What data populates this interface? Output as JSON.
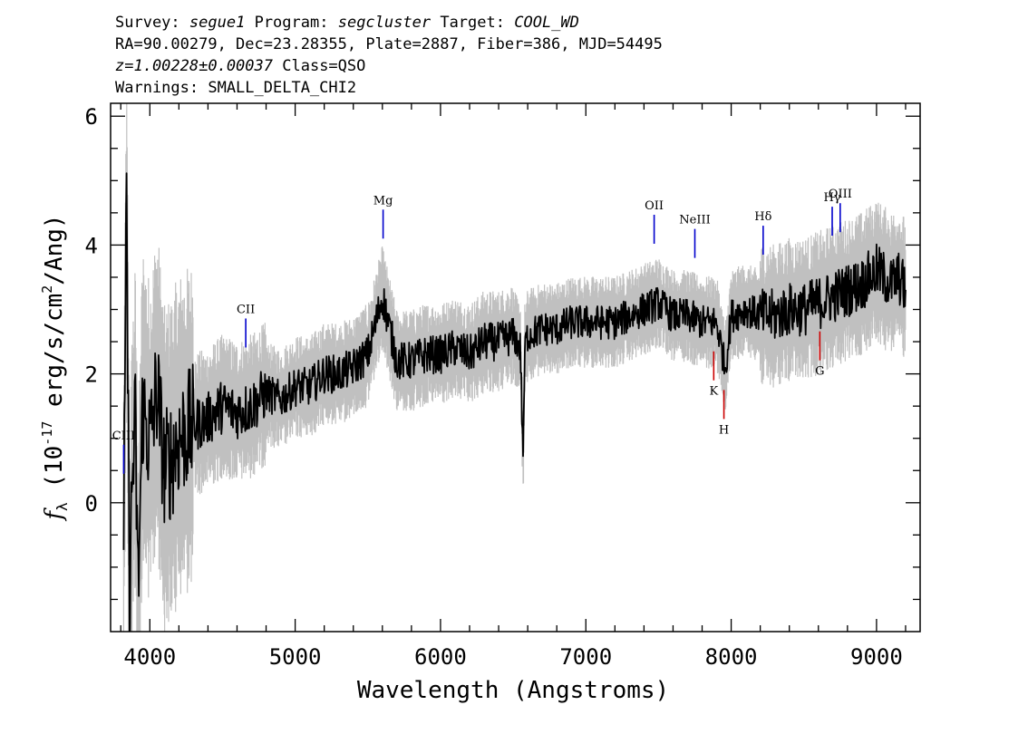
{
  "header": {
    "line1": {
      "survey_key": "Survey:",
      "survey": "segue1",
      "program_key": "Program:",
      "program": "segcluster",
      "target_key": "Target:",
      "target": "COOL_WD"
    },
    "line2": "RA=90.00279, Dec=23.28355, Plate=2887, Fiber=386, MJD=54495",
    "line3": {
      "redshift": "z=1.00228±0.00037",
      "class": "Class=QSO"
    },
    "line4": "Warnings: SMALL_DELTA_CHI2"
  },
  "chart_data": {
    "type": "line",
    "xlabel": "Wavelength (Angstroms)",
    "ylabel": "f_λ (10^-17 erg/s/cm^2/Ang)",
    "xlim": [
      3730,
      9300
    ],
    "ylim": [
      -2.0,
      6.2
    ],
    "xticks": [
      4000,
      5000,
      6000,
      7000,
      8000,
      9000
    ],
    "yticks": [
      0,
      2,
      4,
      6
    ],
    "colors": {
      "flux": "#000000",
      "noise_band": "#c0c0c0",
      "emission": "#0000cc",
      "absorption": "#cc0000"
    },
    "series": [
      {
        "role": "flux",
        "x": [
          3820,
          3840,
          3860,
          3880,
          3900,
          3920,
          3950,
          4000,
          4050,
          4100,
          4150,
          4200,
          4300,
          4400,
          4500,
          4600,
          4700,
          4800,
          4900,
          5000,
          5100,
          5200,
          5300,
          5400,
          5500,
          5600,
          5700,
          5800,
          5900,
          6000,
          6100,
          6200,
          6300,
          6400,
          6500,
          6550,
          6560,
          6570,
          6580,
          6600,
          6700,
          6800,
          6900,
          7000,
          7100,
          7200,
          7300,
          7400,
          7500,
          7600,
          7700,
          7800,
          7900,
          7950,
          7960,
          8000,
          8100,
          8200,
          8300,
          8400,
          8500,
          8600,
          8700,
          8800,
          8900,
          9000,
          9100,
          9150,
          9200
        ],
        "y": [
          -0.5,
          4.6,
          -1.5,
          0.4,
          1.2,
          -1.4,
          1.5,
          0.9,
          1.8,
          0.5,
          0.7,
          1.0,
          1.2,
          1.3,
          1.5,
          1.4,
          1.5,
          1.7,
          1.6,
          1.8,
          1.8,
          2.0,
          2.0,
          2.1,
          2.3,
          3.2,
          2.2,
          2.2,
          2.3,
          2.3,
          2.4,
          2.3,
          2.5,
          2.5,
          2.6,
          2.4,
          1.4,
          0.7,
          2.4,
          2.6,
          2.7,
          2.7,
          2.8,
          2.8,
          2.8,
          2.8,
          2.9,
          3.0,
          3.1,
          2.9,
          2.9,
          2.8,
          2.8,
          2.2,
          2.1,
          2.9,
          3.0,
          2.9,
          2.9,
          3.0,
          3.0,
          3.1,
          3.2,
          3.3,
          3.4,
          3.6,
          3.4,
          3.5,
          3.3
        ]
      }
    ],
    "line_markers": [
      {
        "label": "CIII",
        "wavelength": 3820,
        "kind": "emission"
      },
      {
        "label": "CII",
        "wavelength": 4660,
        "kind": "emission"
      },
      {
        "label": "Mg",
        "wavelength": 5605,
        "kind": "emission"
      },
      {
        "label": "OII",
        "wavelength": 7470,
        "kind": "emission"
      },
      {
        "label": "NeIII",
        "wavelength": 7750,
        "kind": "emission"
      },
      {
        "label": "Hδ",
        "wavelength": 8220,
        "kind": "emission"
      },
      {
        "label": "Hγ",
        "wavelength": 8695,
        "kind": "emission"
      },
      {
        "label": "OIII",
        "wavelength": 8750,
        "kind": "emission"
      },
      {
        "label": "K",
        "wavelength": 7880,
        "kind": "absorption"
      },
      {
        "label": "H",
        "wavelength": 7950,
        "kind": "absorption"
      },
      {
        "label": "G",
        "wavelength": 8610,
        "kind": "absorption"
      }
    ]
  }
}
